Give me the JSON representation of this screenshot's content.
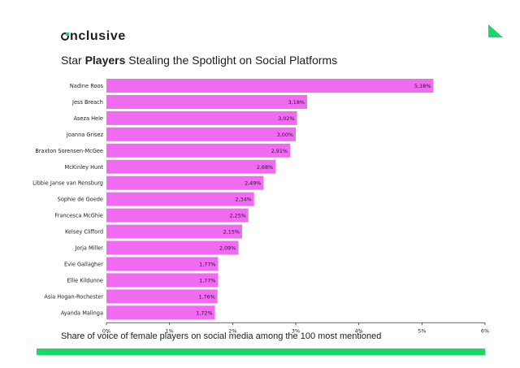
{
  "brand": {
    "name_first_letter": "O",
    "name_rest": "nclusive",
    "accent_color": "#18d966"
  },
  "header": {
    "title_prefix": "Star ",
    "title_bold": "Players",
    "title_suffix": " Stealing the Spotlight on Social Platforms"
  },
  "caption": "Share of voice of female players on social media among the 100 most mentioned",
  "colors": {
    "bar": "#f06af2",
    "axis": "#333333",
    "text": "#1d1d1f"
  },
  "chart_data": {
    "type": "bar",
    "orientation": "horizontal",
    "title": "Star Players Stealing the Spotlight on Social Platforms",
    "xlabel": "Share of voice of female players on social media among the 100 most mentioned",
    "ylabel": "",
    "xlim": [
      0,
      6
    ],
    "grid": false,
    "xticks": [
      "0%",
      "1%",
      "2%",
      "3%",
      "4%",
      "5%",
      "6%"
    ],
    "categories": [
      "Nadine Roos",
      "Jess Breach",
      "Aseza Hele",
      "Joanna Grisez",
      "Braxton Sorensen-McGee",
      "McKinley Hunt",
      "Libbie Janse van Rensburg",
      "Sophie de Goede",
      "Francesca McGhie",
      "Kelsey Clifford",
      "Jorja Miller",
      "Evie Gallagher",
      "Ellie Kildunne",
      "Asia Hogan-Rochester",
      "Ayanda Malinga"
    ],
    "values": [
      5.18,
      3.18,
      3.02,
      3.0,
      2.91,
      2.68,
      2.49,
      2.34,
      2.25,
      2.15,
      2.09,
      1.77,
      1.77,
      1.76,
      1.72
    ],
    "value_labels": [
      "5,18%",
      "3,18%",
      "3,02%",
      "3,00%",
      "2,91%",
      "2,68%",
      "2,49%",
      "2,34%",
      "2,25%",
      "2,15%",
      "2,09%",
      "1,77%",
      "1,77%",
      "1,76%",
      "1,72%"
    ]
  }
}
